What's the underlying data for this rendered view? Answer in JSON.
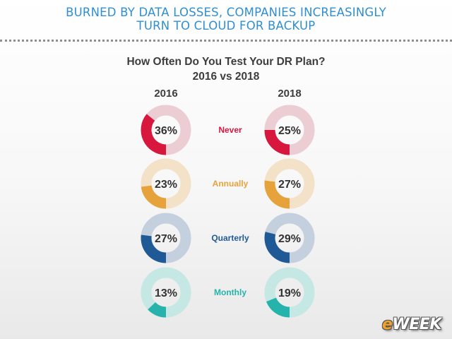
{
  "slide": {
    "title_line1": "BURNED BY DATA LOSSES, COMPANIES INCREASINGLY",
    "title_line2": "TURN TO CLOUD FOR BACKUP",
    "logo_e": "e",
    "logo_rest": "WEEK"
  },
  "chart_data": {
    "type": "donut",
    "title": "How Often Do You Test Your DR Plan?",
    "subtitle": "2016 vs 2018",
    "years": [
      "2016",
      "2018"
    ],
    "categories": [
      {
        "name": "Never",
        "color": "#d8173f",
        "track": "#ebcdd3",
        "values": [
          36,
          25
        ]
      },
      {
        "name": "Annually",
        "color": "#e6a33b",
        "track": "#f3e2c8",
        "values": [
          23,
          27
        ]
      },
      {
        "name": "Quarterly",
        "color": "#1f5a96",
        "track": "#c4d0de",
        "values": [
          27,
          29
        ]
      },
      {
        "name": "Monthly",
        "color": "#26b3ab",
        "track": "#c5e8e5",
        "values": [
          13,
          19
        ]
      }
    ]
  }
}
